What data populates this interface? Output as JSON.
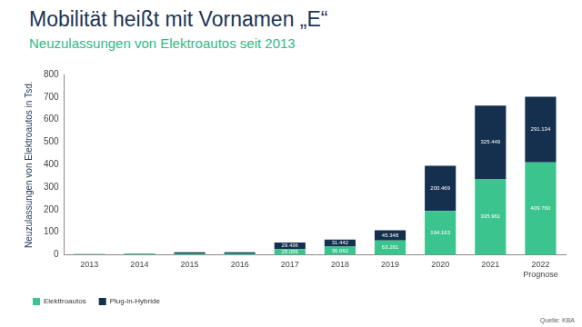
{
  "chart_data": {
    "type": "bar",
    "title": "Mobilität heißt mit Vornamen „E“",
    "subtitle": "Neuzulassungen von Elektroautos seit 2013",
    "y_label": "Neuzulassungen von Elektroautos in Tsd.",
    "categories": [
      "2013",
      "2014",
      "2015",
      "2016",
      "2017",
      "2018",
      "2019",
      "2020",
      "2021",
      "2022"
    ],
    "annotations": [
      {
        "category": "2022",
        "text": "Prognose"
      }
    ],
    "series": [
      {
        "name": "Elekttroautos",
        "color": "#3cc48e",
        "values": [
          2,
          4,
          6,
          6,
          25.056,
          36.062,
          63.281,
          194.163,
          335.961,
          409.76
        ],
        "value_labels": [
          null,
          null,
          null,
          null,
          "25.056",
          "36.062",
          "63.281",
          "194.163",
          "335.961",
          "409.760"
        ]
      },
      {
        "name": "Plug-in-Hybride",
        "color": "#15304f",
        "values": [
          1,
          2,
          5,
          5,
          29.436,
          31.442,
          45.348,
          200.469,
          325.449,
          291.134
        ],
        "value_labels": [
          null,
          null,
          null,
          null,
          "29.436",
          "31.442",
          "45.348",
          "200.469",
          "325.449",
          "291.134"
        ]
      }
    ],
    "ylim": [
      0,
      800
    ],
    "yticks": [
      0,
      100,
      200,
      300,
      400,
      500,
      600,
      700,
      800
    ],
    "stacked": true,
    "data_labels": true,
    "grid": false,
    "legend": "bottom-left",
    "source": "Quelle: KBA"
  }
}
